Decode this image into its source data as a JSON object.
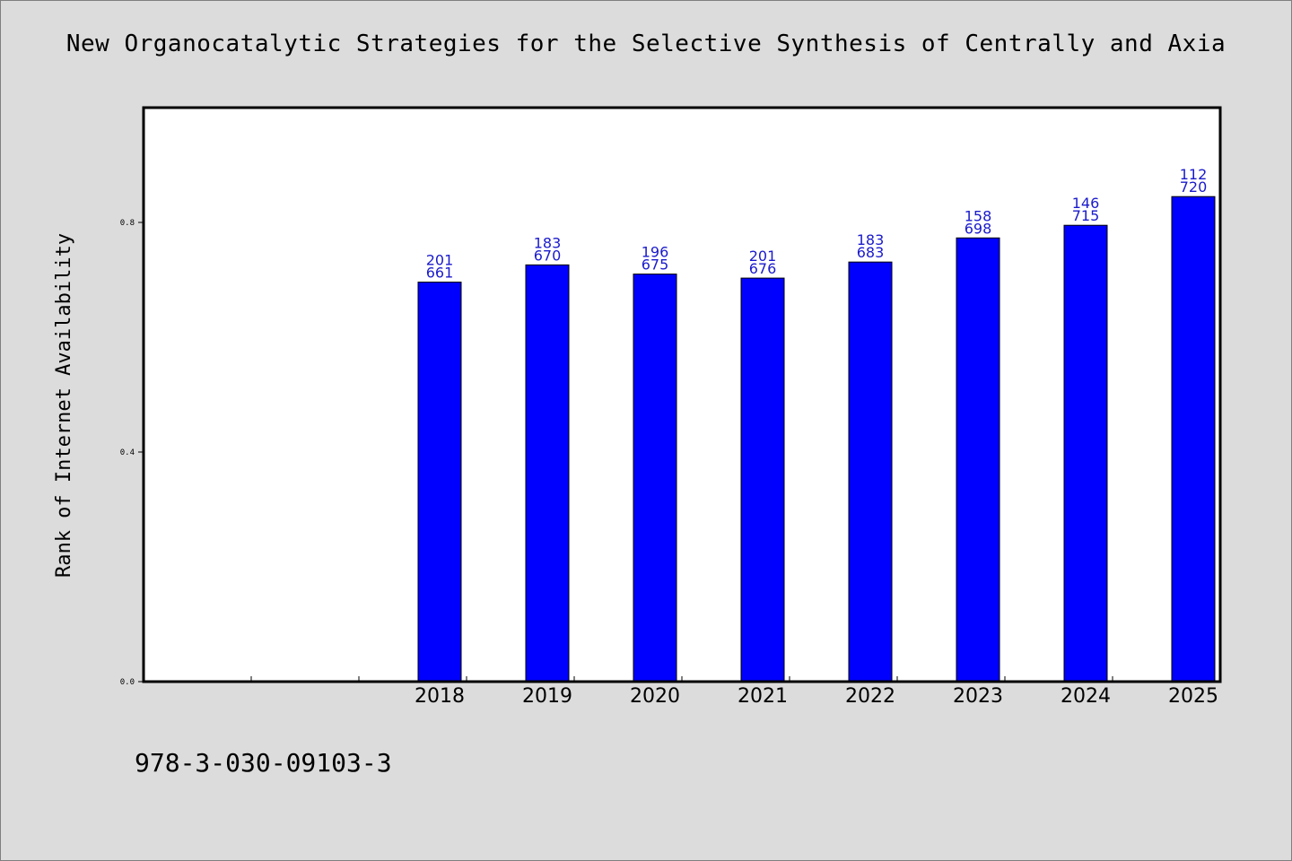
{
  "chart_data": {
    "type": "bar",
    "title": "New Organocatalytic Strategies for the Selective Synthesis of Centrally and Axia",
    "xlabel": "",
    "ylabel": "Rank of Internet Availability",
    "categories": [
      "",
      "",
      "2018",
      "2019",
      "2020",
      "2021",
      "2022",
      "2023",
      "2024",
      "2025"
    ],
    "series": [
      {
        "values": [
          null,
          null,
          0.696,
          0.726,
          0.71,
          0.703,
          0.731,
          0.773,
          0.795,
          0.845
        ],
        "labels_top": [
          "",
          "",
          "201",
          "183",
          "196",
          "201",
          "183",
          "158",
          "146",
          "112"
        ],
        "labels_bottom": [
          "",
          "",
          "661",
          "670",
          "675",
          "676",
          "683",
          "698",
          "715",
          "720"
        ]
      }
    ],
    "ylim": [
      0,
      1.0
    ],
    "yticks": [
      "0.0",
      "0.4",
      "0.8"
    ],
    "ytick_values": [
      0.0,
      0.4,
      0.8
    ],
    "grid": false,
    "legend": "none",
    "colors": {
      "bar": "#0000ff",
      "bar_edge": "#000000",
      "data_label": "#1a1acc",
      "background": "#dcdcdc",
      "plot_bg": "#ffffff"
    }
  },
  "footer": {
    "isbn": "978-3-030-09103-3"
  }
}
